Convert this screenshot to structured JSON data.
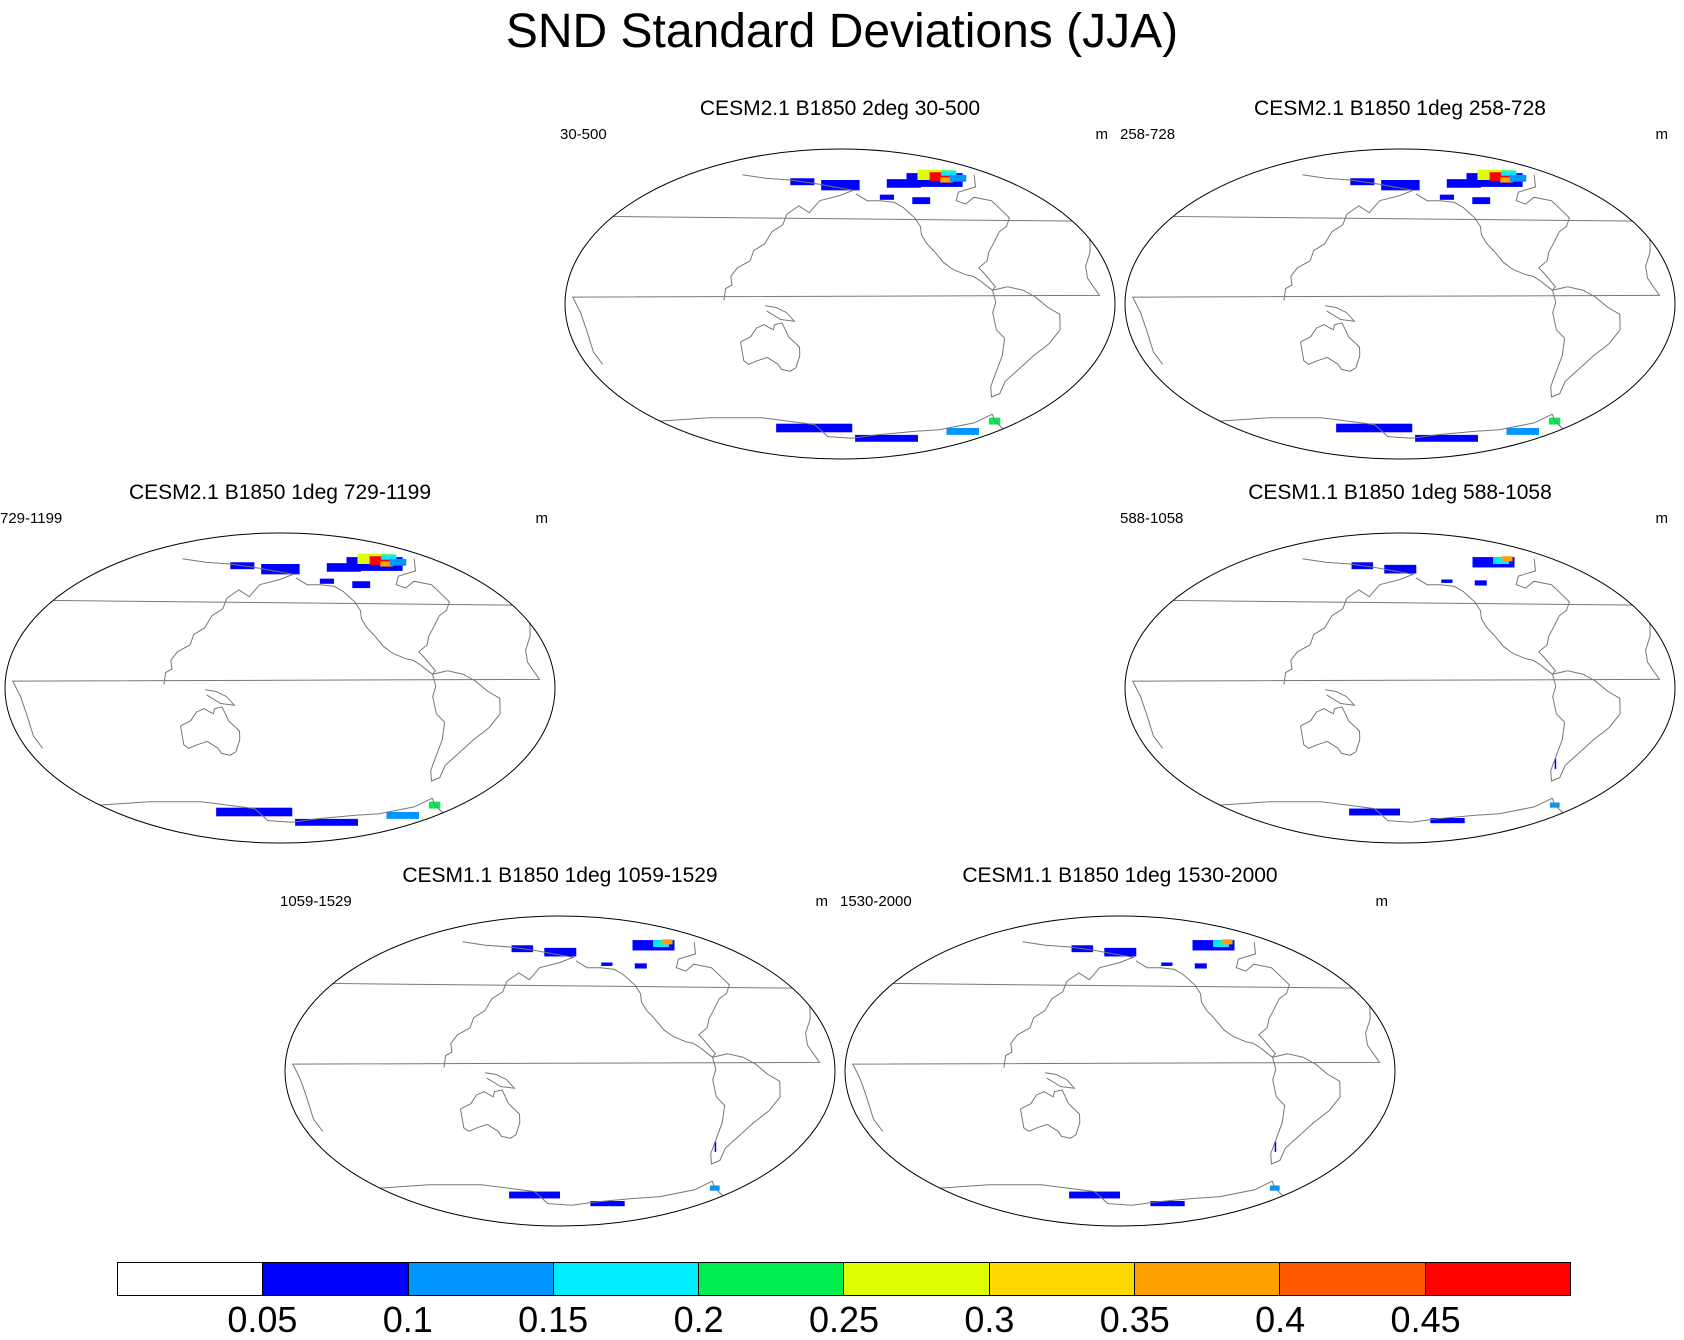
{
  "figure": {
    "title": "SND Standard Deviations (JJA)"
  },
  "panels": [
    {
      "title": "CESM2.1 B1850 2deg 30-500",
      "left_label": "30-500",
      "right_label": "m",
      "snow": "heavy"
    },
    {
      "title": "CESM2.1 B1850 1deg 258-728",
      "left_label": "258-728",
      "right_label": "m",
      "snow": "heavy"
    },
    {
      "title": "CESM2.1 B1850 1deg 729-1199",
      "left_label": "729-1199",
      "right_label": "m",
      "snow": "heavy"
    },
    {
      "title": "CESM1.1 B1850 1deg 588-1058",
      "left_label": "588-1058",
      "right_label": "m",
      "snow": "light"
    },
    {
      "title": "CESM1.1 B1850 1deg 1059-1529",
      "left_label": "1059-1529",
      "right_label": "m",
      "snow": "light"
    },
    {
      "title": "CESM1.1 B1850 1deg 1530-2000",
      "left_label": "1530-2000",
      "right_label": "m",
      "snow": "light"
    }
  ],
  "colorbar": {
    "units": "m",
    "levels": [
      "0.05",
      "0.1",
      "0.15",
      "0.2",
      "0.25",
      "0.3",
      "0.35",
      "0.4",
      "0.45"
    ],
    "colors": [
      "#ffffff",
      "#0000ff",
      "#0096ff",
      "#00eeff",
      "#00ee50",
      "#ddff00",
      "#ffd800",
      "#ffa000",
      "#ff5a00",
      "#ff0000"
    ]
  }
}
